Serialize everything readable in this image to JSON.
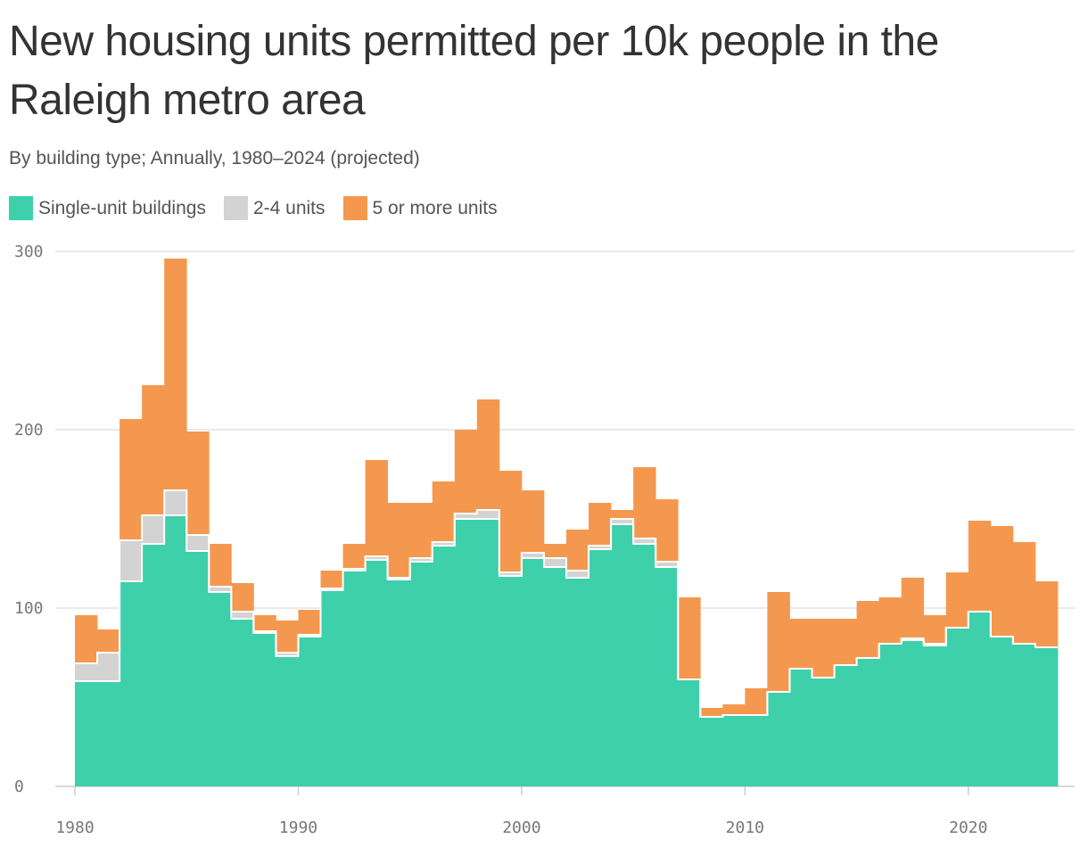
{
  "title": "New housing units permitted per 10k people in the Raleigh metro area",
  "subtitle": "By building type; Annually, 1980–2024 (projected)",
  "legend": [
    {
      "label": "Single-unit buildings",
      "color": "#3ecfab"
    },
    {
      "label": "2-4 units",
      "color": "#d3d3d3"
    },
    {
      "label": "5 or more units",
      "color": "#f5984f"
    }
  ],
  "chart_data": {
    "type": "area",
    "stacked": true,
    "step": true,
    "title": "New housing units permitted per 10k people in the Raleigh metro area",
    "subtitle": "By building type; Annually, 1980–2024 (projected)",
    "xlabel": "",
    "ylabel": "",
    "xlim": [
      1980,
      2024
    ],
    "ylim": [
      0,
      300
    ],
    "yticks": [
      0,
      100,
      200,
      300
    ],
    "xticks": [
      1980,
      1990,
      2000,
      2010,
      2020
    ],
    "grid": true,
    "legend_position": "top-left",
    "x": [
      1980,
      1981,
      1982,
      1983,
      1984,
      1985,
      1986,
      1987,
      1988,
      1989,
      1990,
      1991,
      1992,
      1993,
      1994,
      1995,
      1996,
      1997,
      1998,
      1999,
      2000,
      2001,
      2002,
      2003,
      2004,
      2005,
      2006,
      2007,
      2008,
      2009,
      2010,
      2011,
      2012,
      2013,
      2014,
      2015,
      2016,
      2017,
      2018,
      2019,
      2020,
      2021,
      2022,
      2023
    ],
    "series": [
      {
        "name": "Single-unit buildings",
        "color": "#3ecfab",
        "values": [
          59,
          59,
          115,
          136,
          152,
          132,
          109,
          94,
          86,
          73,
          84,
          110,
          121,
          127,
          116,
          126,
          135,
          150,
          150,
          118,
          128,
          123,
          117,
          133,
          147,
          136,
          123,
          60,
          39,
          40,
          40,
          53,
          66,
          61,
          68,
          72,
          80,
          82,
          79,
          89,
          98,
          84,
          80,
          78
        ]
      },
      {
        "name": "2-4 units",
        "color": "#d3d3d3",
        "values": [
          10,
          16,
          23,
          16,
          14,
          9,
          3,
          4,
          1,
          2,
          1,
          1,
          1,
          2,
          1,
          2,
          2,
          3,
          5,
          2,
          3,
          5,
          4,
          2,
          3,
          3,
          3,
          0,
          0,
          0,
          0,
          0,
          0,
          0,
          0,
          0,
          0,
          1,
          1,
          0,
          0,
          0,
          0,
          0
        ]
      },
      {
        "name": "5 or more units",
        "color": "#f5984f",
        "values": [
          27,
          13,
          68,
          73,
          130,
          58,
          24,
          16,
          9,
          18,
          14,
          10,
          14,
          54,
          42,
          31,
          34,
          47,
          62,
          57,
          35,
          8,
          23,
          24,
          5,
          40,
          35,
          46,
          5,
          6,
          15,
          56,
          28,
          33,
          26,
          32,
          26,
          34,
          16,
          31,
          51,
          62,
          57,
          37
        ]
      }
    ]
  }
}
